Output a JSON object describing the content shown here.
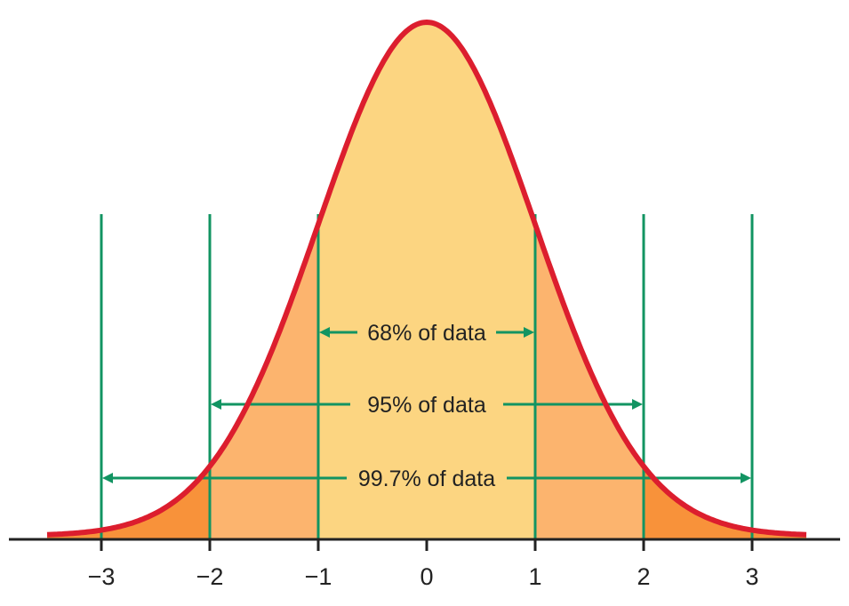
{
  "chart_data": {
    "type": "area",
    "title": "",
    "xlabel": "",
    "ylabel": "",
    "xlim": [
      -3.5,
      3.5
    ],
    "ticks": [
      {
        "value": -3,
        "label": "−3"
      },
      {
        "value": -2,
        "label": "−2"
      },
      {
        "value": -1,
        "label": "−1"
      },
      {
        "value": 0,
        "label": "0"
      },
      {
        "value": 1,
        "label": "1"
      },
      {
        "value": 2,
        "label": "2"
      },
      {
        "value": 3,
        "label": "3"
      }
    ],
    "boundaries": [
      -3,
      -2,
      -1,
      1,
      2,
      3
    ],
    "bands": [
      {
        "from": -1,
        "to": 1,
        "color": "#fcd581"
      },
      {
        "from": -2,
        "to": -1,
        "color": "#fcb46e"
      },
      {
        "from": 1,
        "to": 2,
        "color": "#fcb46e"
      },
      {
        "from": -3.5,
        "to": -2,
        "color": "#f8923a"
      },
      {
        "from": 2,
        "to": 3.5,
        "color": "#f8923a"
      }
    ],
    "ranges": [
      {
        "from": -1,
        "to": 1,
        "percent": 68,
        "label": "68% of data"
      },
      {
        "from": -2,
        "to": 2,
        "percent": 95,
        "label": "95% of data"
      },
      {
        "from": -3,
        "to": 3,
        "percent": 99.7,
        "label": "99.7% of data"
      }
    ],
    "colors": {
      "curve": "#dc1e2e",
      "boundary_lines": "#129462",
      "arrows": "#129462",
      "axis": "#222222"
    }
  }
}
